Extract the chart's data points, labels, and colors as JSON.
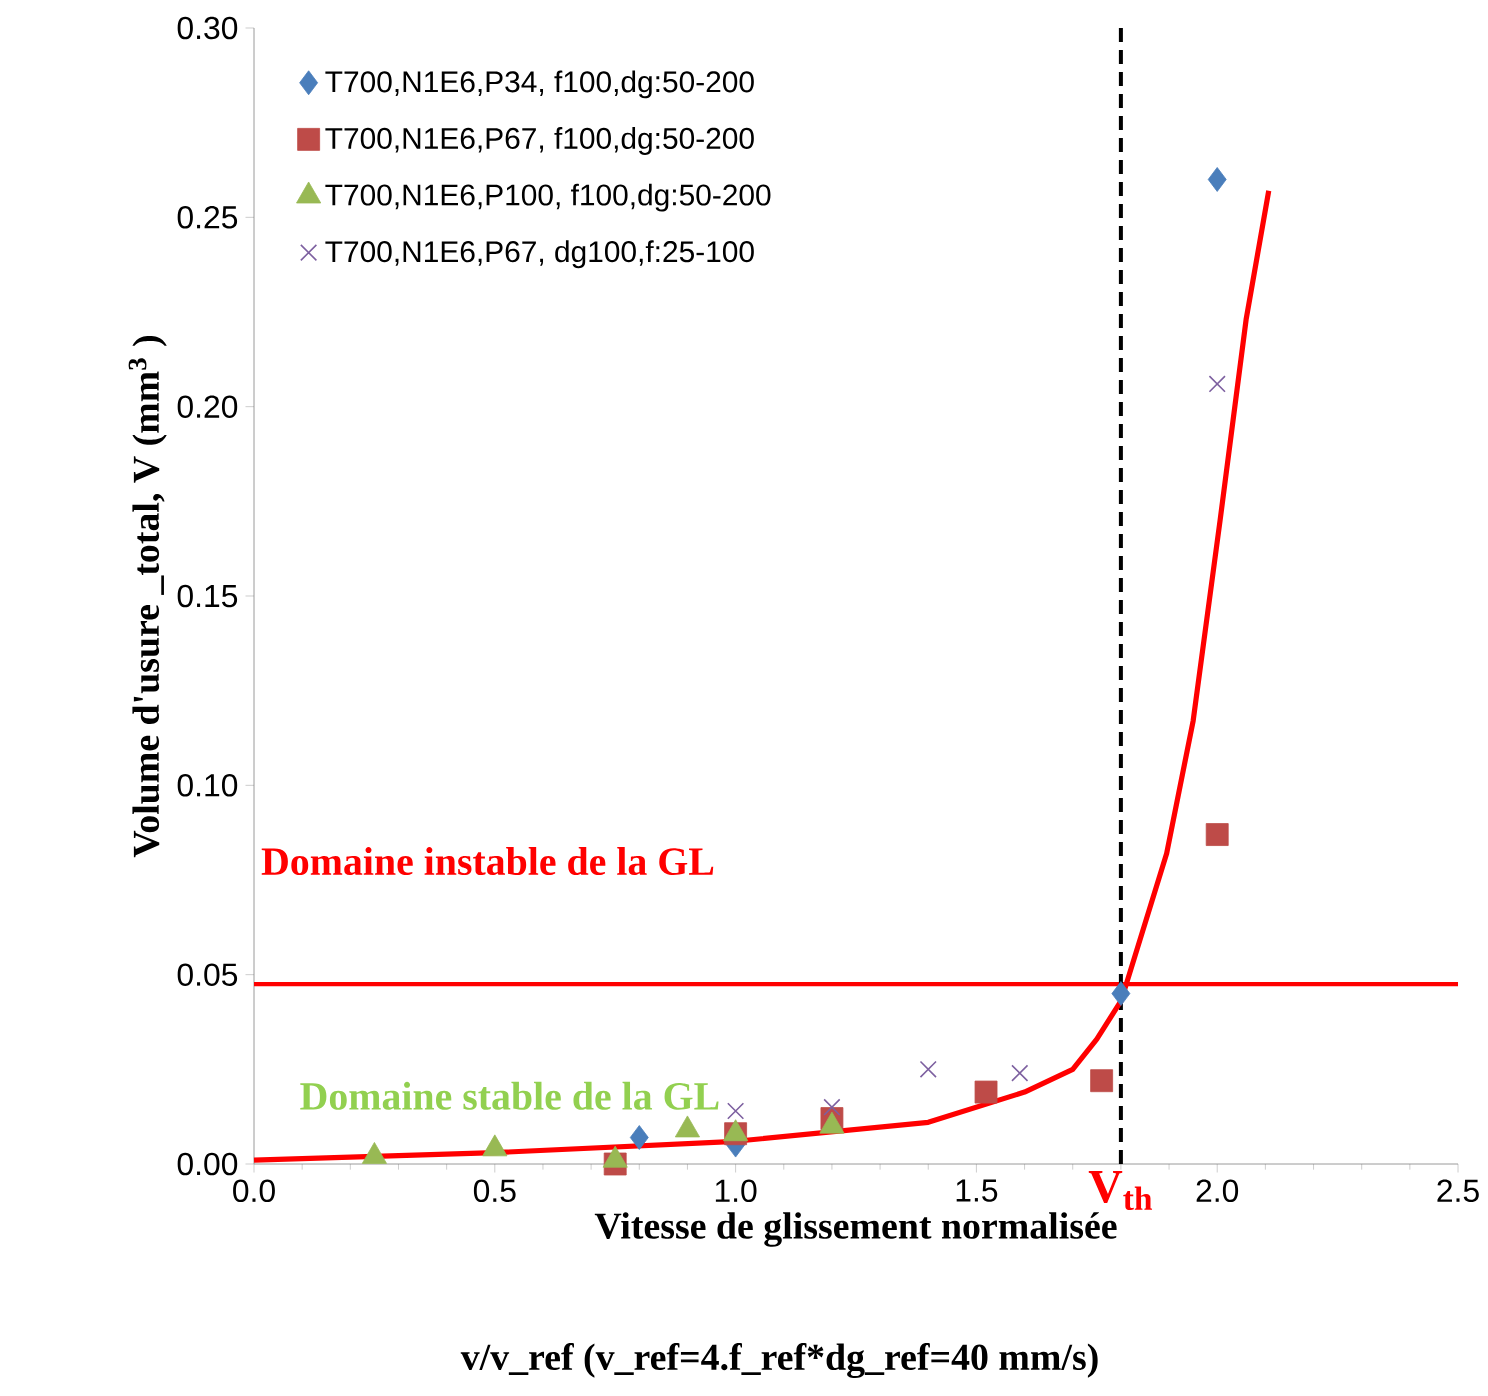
{
  "chart_data": {
    "type": "scatter",
    "xlabel": "Vitesse de glissement normalisée",
    "ylabel": "Volume d'usure _total, V (mm$^{3}$ )",
    "xlim": [
      0,
      2.5
    ],
    "ylim": [
      0,
      0.3
    ],
    "xticks": [
      {
        "value": 0,
        "label": "0.0"
      },
      {
        "value": 0.5,
        "label": "0.5"
      },
      {
        "value": 1,
        "label": "1.0"
      },
      {
        "value": 1.5,
        "label": "1.5"
      },
      {
        "value": 2,
        "label": "2.0"
      },
      {
        "value": 2.5,
        "label": "2.5"
      }
    ],
    "yticks": [
      {
        "value": 0,
        "label": "0.00"
      },
      {
        "value": 0.05,
        "label": "0.05"
      },
      {
        "value": 0.1,
        "label": "0.10"
      },
      {
        "value": 0.15,
        "label": "0.15"
      },
      {
        "value": 0.2,
        "label": "0.20"
      },
      {
        "value": 0.25,
        "label": "0.25"
      },
      {
        "value": 0.3,
        "label": "0.30"
      }
    ],
    "grid": false,
    "legend": "top left",
    "series": [
      {
        "name": "T700,N1E6,P34, f100,dg:50-200",
        "color": "#4a7ebb",
        "marker": "diamond",
        "x": [
          0.8,
          1.0,
          1.8,
          2.0
        ],
        "values": [
          0.007,
          0.005,
          0.045,
          0.26
        ]
      },
      {
        "name": "T700,N1E6,P67, f100,dg:50-200",
        "color": "#be4b48",
        "marker": "square",
        "x": [
          0.75,
          1.0,
          1.2,
          1.52,
          1.76,
          2.0
        ],
        "values": [
          0.0,
          0.008,
          0.012,
          0.019,
          0.022,
          0.087
        ]
      },
      {
        "name": "T700,N1E6,P100, f100,dg:50-200",
        "color": "#98b954",
        "marker": "triangle",
        "x": [
          0.25,
          0.5,
          0.75,
          0.9,
          1.0,
          1.2
        ],
        "values": [
          0.002,
          0.004,
          0.001,
          0.009,
          0.008,
          0.01
        ]
      },
      {
        "name": "T700,N1E6,P67, dg100,f:25-100",
        "color": "#7d60a0",
        "marker": "cross",
        "x": [
          1.0,
          1.2,
          1.4,
          1.59,
          2.0
        ],
        "values": [
          0.014,
          0.015,
          0.025,
          0.024,
          0.206
        ]
      },
      {
        "type": "line",
        "color": "#ff0000",
        "marker": "none",
        "x": [
          0,
          0.25,
          0.5,
          1.0,
          1.4,
          1.6,
          1.7,
          1.75,
          1.8,
          1.81,
          1.895,
          1.95,
          2.006,
          2.06,
          2.107
        ],
        "values": [
          0.001,
          0.002,
          0.003,
          0.006,
          0.011,
          0.019,
          0.025,
          0.033,
          0.043,
          0.047,
          0.082,
          0.117,
          0.17,
          0.223,
          0.257
        ]
      }
    ],
    "ref_lines": [
      {
        "axis": "y",
        "value": 0.0475,
        "color": "#ff0000",
        "line_style": "solid"
      },
      {
        "axis": "x",
        "value": 1.8,
        "label": "V$_{th}$",
        "color": "#000000",
        "line_style": "dashed"
      }
    ],
    "annotations": [
      "Domaine instable de la GL",
      "Domaine stable de la GL",
      "v/v_ref  (v_ref=4.f_ref*dg_ref=40 mm/s)"
    ]
  }
}
